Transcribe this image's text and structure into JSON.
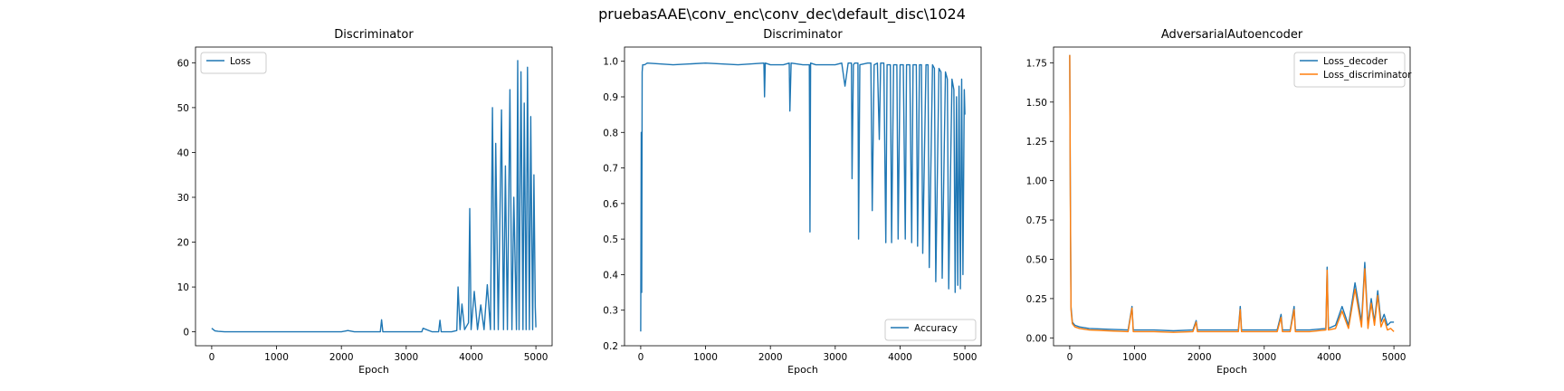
{
  "figure": {
    "suptitle": "pruebasAAE\\conv_enc\\conv_dec\\default_disc\\1024"
  },
  "colors": {
    "blue": "#1f77b4",
    "orange": "#ff7f0e"
  },
  "chart_data": [
    {
      "type": "line",
      "title": "Discriminator",
      "xlabel": "Epoch",
      "ylabel": "",
      "xlim": [
        -250,
        5250
      ],
      "ylim": [
        -3.1,
        63.5
      ],
      "xticks": [
        0,
        1000,
        2000,
        3000,
        4000,
        5000
      ],
      "yticks": [
        0,
        10,
        20,
        30,
        40,
        50,
        60
      ],
      "legend": "upper left",
      "series": [
        {
          "name": "Loss",
          "color": "#1f77b4",
          "x": [
            0,
            50,
            100,
            200,
            400,
            800,
            1200,
            1600,
            2000,
            2100,
            2200,
            2400,
            2600,
            2620,
            2640,
            2700,
            3000,
            3240,
            3260,
            3400,
            3500,
            3520,
            3540,
            3700,
            3780,
            3800,
            3830,
            3860,
            3900,
            3960,
            3980,
            4000,
            4050,
            4100,
            4150,
            4200,
            4250,
            4300,
            4330,
            4360,
            4380,
            4420,
            4470,
            4500,
            4530,
            4560,
            4600,
            4630,
            4660,
            4700,
            4720,
            4740,
            4770,
            4800,
            4820,
            4850,
            4870,
            4900,
            4920,
            4950,
            4970,
            4990,
            5000
          ],
          "y": [
            0.8,
            0.2,
            0.1,
            0,
            0,
            0,
            0,
            0,
            0,
            0.3,
            0,
            0,
            0,
            2.7,
            0,
            0,
            0,
            0,
            0.8,
            0,
            0,
            2.6,
            0,
            0,
            0.3,
            10,
            0.5,
            6.2,
            0.5,
            2,
            27.5,
            0.5,
            9,
            0.5,
            6,
            0.5,
            10.5,
            0.5,
            50,
            0.5,
            42,
            0.5,
            49.5,
            0.5,
            37,
            0.5,
            54,
            0.5,
            30,
            0.5,
            60.5,
            0.5,
            58,
            0.5,
            51,
            0.5,
            59,
            0.5,
            48,
            0.5,
            35,
            5.5,
            1
          ]
        }
      ]
    },
    {
      "type": "line",
      "title": "Discriminator",
      "xlabel": "Epoch",
      "ylabel": "",
      "xlim": [
        -250,
        5250
      ],
      "ylim": [
        0.2,
        1.04
      ],
      "xticks": [
        0,
        1000,
        2000,
        3000,
        4000,
        5000
      ],
      "yticks": [
        0.2,
        0.3,
        0.4,
        0.5,
        0.6,
        0.7,
        0.8,
        0.9,
        1.0
      ],
      "legend": "lower right",
      "series": [
        {
          "name": "Accuracy",
          "color": "#1f77b4",
          "x": [
            0,
            8,
            15,
            22,
            30,
            60,
            100,
            500,
            1000,
            1500,
            1900,
            1910,
            1920,
            2000,
            2200,
            2290,
            2300,
            2320,
            2500,
            2600,
            2610,
            2620,
            2700,
            3000,
            3100,
            3150,
            3200,
            3250,
            3260,
            3280,
            3300,
            3350,
            3360,
            3380,
            3500,
            3550,
            3570,
            3600,
            3650,
            3680,
            3700,
            3750,
            3780,
            3800,
            3850,
            3870,
            3900,
            3950,
            3970,
            4000,
            4050,
            4080,
            4100,
            4150,
            4180,
            4200,
            4250,
            4270,
            4300,
            4330,
            4350,
            4400,
            4430,
            4450,
            4500,
            4530,
            4550,
            4600,
            4630,
            4650,
            4700,
            4730,
            4750,
            4800,
            4830,
            4850,
            4870,
            4890,
            4910,
            4930,
            4950,
            4970,
            4990,
            5000
          ],
          "y": [
            0.24,
            0.8,
            0.35,
            0.97,
            0.99,
            0.99,
            0.995,
            0.99,
            0.995,
            0.99,
            0.995,
            0.9,
            0.995,
            0.99,
            0.99,
            0.995,
            0.86,
            0.995,
            0.99,
            0.99,
            0.52,
            0.995,
            0.99,
            0.99,
            0.995,
            0.93,
            0.995,
            0.995,
            0.67,
            0.99,
            0.995,
            0.995,
            0.5,
            0.99,
            0.995,
            0.995,
            0.58,
            0.99,
            0.995,
            0.78,
            0.995,
            0.995,
            0.49,
            0.99,
            0.99,
            0.49,
            0.99,
            0.99,
            0.5,
            0.99,
            0.99,
            0.5,
            0.99,
            0.99,
            0.49,
            0.99,
            0.99,
            0.48,
            0.99,
            0.99,
            0.46,
            0.99,
            0.99,
            0.42,
            0.99,
            0.98,
            0.38,
            0.98,
            0.97,
            0.39,
            0.97,
            0.95,
            0.36,
            0.95,
            0.92,
            0.35,
            0.9,
            0.37,
            0.93,
            0.36,
            0.95,
            0.4,
            0.92,
            0.85
          ]
        }
      ]
    },
    {
      "type": "line",
      "title": "AdversarialAutoencoder",
      "xlabel": "Epoch",
      "ylabel": "",
      "xlim": [
        -250,
        5250
      ],
      "ylim": [
        -0.05,
        1.85
      ],
      "xticks": [
        0,
        1000,
        2000,
        3000,
        4000,
        5000
      ],
      "yticks": [
        0.0,
        0.25,
        0.5,
        0.75,
        1.0,
        1.25,
        1.5,
        1.75
      ],
      "ytick_labels": [
        "0.00",
        "0.25",
        "0.50",
        "0.75",
        "1.00",
        "1.25",
        "1.50",
        "1.75"
      ],
      "legend": "upper right",
      "series": [
        {
          "name": "Loss_decoder",
          "color": "#1f77b4",
          "x": [
            0,
            10,
            20,
            40,
            80,
            150,
            300,
            600,
            900,
            960,
            980,
            1000,
            1300,
            1600,
            1900,
            1950,
            1970,
            2300,
            2600,
            2630,
            2650,
            2900,
            3200,
            3260,
            3280,
            3400,
            3460,
            3480,
            3700,
            3950,
            3970,
            3990,
            4100,
            4200,
            4300,
            4400,
            4500,
            4550,
            4600,
            4650,
            4700,
            4750,
            4800,
            4850,
            4900,
            4950,
            5000
          ],
          "y": [
            1.8,
            0.9,
            0.2,
            0.1,
            0.08,
            0.07,
            0.06,
            0.055,
            0.05,
            0.2,
            0.05,
            0.05,
            0.05,
            0.045,
            0.05,
            0.11,
            0.05,
            0.05,
            0.05,
            0.2,
            0.05,
            0.05,
            0.05,
            0.15,
            0.05,
            0.05,
            0.2,
            0.05,
            0.05,
            0.06,
            0.45,
            0.06,
            0.08,
            0.2,
            0.08,
            0.35,
            0.1,
            0.48,
            0.08,
            0.25,
            0.1,
            0.3,
            0.1,
            0.15,
            0.08,
            0.1,
            0.1
          ]
        },
        {
          "name": "Loss_discriminator",
          "color": "#ff7f0e",
          "x": [
            0,
            10,
            20,
            40,
            80,
            150,
            300,
            600,
            900,
            960,
            980,
            1000,
            1300,
            1600,
            1900,
            1950,
            1970,
            2300,
            2600,
            2630,
            2650,
            2900,
            3200,
            3260,
            3280,
            3400,
            3460,
            3480,
            3700,
            3950,
            3970,
            3990,
            4100,
            4200,
            4300,
            4400,
            4500,
            4550,
            4600,
            4650,
            4700,
            4750,
            4800,
            4850,
            4900,
            4950,
            5000
          ],
          "y": [
            1.8,
            0.85,
            0.18,
            0.09,
            0.07,
            0.06,
            0.05,
            0.045,
            0.04,
            0.19,
            0.04,
            0.04,
            0.04,
            0.035,
            0.04,
            0.1,
            0.04,
            0.04,
            0.04,
            0.18,
            0.04,
            0.04,
            0.04,
            0.13,
            0.04,
            0.04,
            0.18,
            0.04,
            0.04,
            0.05,
            0.43,
            0.05,
            0.06,
            0.17,
            0.06,
            0.31,
            0.07,
            0.44,
            0.06,
            0.22,
            0.08,
            0.27,
            0.07,
            0.12,
            0.05,
            0.06,
            0.04
          ]
        }
      ]
    }
  ]
}
